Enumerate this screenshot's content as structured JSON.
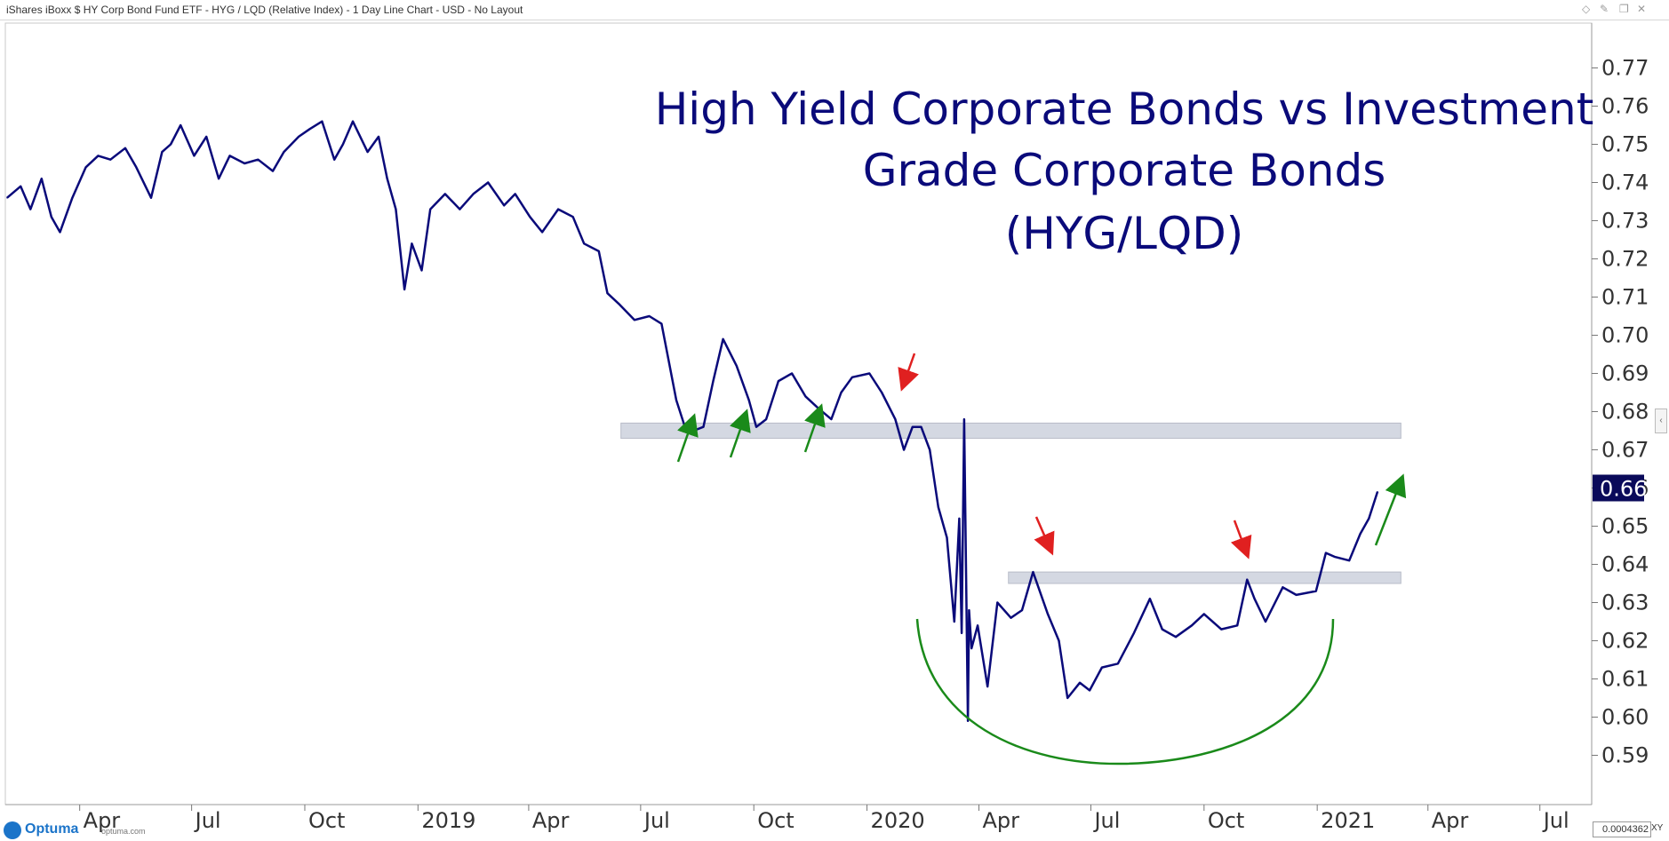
{
  "header": {
    "title": "iShares iBoxx $ HY Corp Bond Fund ETF - HYG / LQD (Relative Index) - 1 Day Line Chart - USD - No Layout",
    "icons": [
      "diamond-icon",
      "pin-icon",
      "restore-icon",
      "close-icon"
    ]
  },
  "footer": {
    "brand": "Optuma",
    "brand_url": "optuma.com",
    "readout_value": "0.0004362",
    "readout_mode": "XY"
  },
  "colors": {
    "line": "#0a0a7a",
    "up_arrow": "#1a8a1a",
    "down_arrow": "#e02020",
    "zone": "#d4d8e2",
    "arc": "#1a8a1a",
    "price_tag_bg": "#0a0a5a"
  },
  "chart_data": {
    "type": "line",
    "title_lines": [
      "High Yield Corporate Bonds vs Investment",
      "Grade Corporate Bonds",
      "(HYG/LQD)"
    ],
    "xlabel": "",
    "ylabel": "",
    "ylim": [
      0.585,
      0.775
    ],
    "y_ticks": [
      "0.77",
      "0.76",
      "0.75",
      "0.74",
      "0.73",
      "0.72",
      "0.71",
      "0.70",
      "0.69",
      "0.68",
      "0.67",
      "0.66",
      "0.65",
      "0.64",
      "0.63",
      "0.62",
      "0.61",
      "0.60",
      "0.59"
    ],
    "x_ticks": [
      "Apr",
      "Jul",
      "Oct",
      "2019",
      "Apr",
      "Jul",
      "Oct",
      "2020",
      "Apr",
      "Jul",
      "Oct",
      "2021",
      "Apr",
      "Jul"
    ],
    "last_value": "0.66",
    "grid": false,
    "legend": "none",
    "series": [
      {
        "x": [
          "2018-02-01",
          "2018-02-12",
          "2018-02-20",
          "2018-03-01",
          "2018-03-09",
          "2018-03-16",
          "2018-03-26",
          "2018-04-06",
          "2018-04-16",
          "2018-04-26",
          "2018-05-08",
          "2018-05-17",
          "2018-05-29",
          "2018-06-07",
          "2018-06-14",
          "2018-06-22",
          "2018-07-03",
          "2018-07-13",
          "2018-07-23",
          "2018-08-01",
          "2018-08-13",
          "2018-08-24",
          "2018-09-05",
          "2018-09-14",
          "2018-09-26",
          "2018-10-05",
          "2018-10-15",
          "2018-10-25",
          "2018-11-01",
          "2018-11-09",
          "2018-11-21",
          "2018-11-30",
          "2018-12-07",
          "2018-12-14",
          "2018-12-21",
          "2018-12-27",
          "2019-01-04",
          "2019-01-11",
          "2019-01-23",
          "2019-02-04",
          "2019-02-15",
          "2019-02-27",
          "2019-03-12",
          "2019-03-21",
          "2019-04-02",
          "2019-04-12",
          "2019-04-25",
          "2019-05-07",
          "2019-05-16",
          "2019-05-28",
          "2019-06-04",
          "2019-06-14",
          "2019-06-26",
          "2019-07-08",
          "2019-07-18",
          "2019-07-30",
          "2019-08-06",
          "2019-08-13",
          "2019-08-21",
          "2019-08-29",
          "2019-09-06",
          "2019-09-17",
          "2019-09-27",
          "2019-10-03",
          "2019-10-11",
          "2019-10-21",
          "2019-11-01",
          "2019-11-12",
          "2019-11-22",
          "2019-12-03",
          "2019-12-11",
          "2019-12-20",
          "2020-01-03",
          "2020-01-13",
          "2020-01-24",
          "2020-01-31",
          "2020-02-07",
          "2020-02-14",
          "2020-02-21",
          "2020-02-28",
          "2020-03-06",
          "2020-03-12",
          "2020-03-16",
          "2020-03-18",
          "2020-03-20",
          "2020-03-23",
          "2020-03-24",
          "2020-03-26",
          "2020-03-31",
          "2020-04-08",
          "2020-04-16",
          "2020-04-27",
          "2020-05-06",
          "2020-05-15",
          "2020-05-27",
          "2020-06-05",
          "2020-06-12",
          "2020-06-22",
          "2020-06-30",
          "2020-07-10",
          "2020-07-23",
          "2020-08-05",
          "2020-08-18",
          "2020-08-28",
          "2020-09-08",
          "2020-09-21",
          "2020-10-01",
          "2020-10-15",
          "2020-10-28",
          "2020-11-05",
          "2020-11-11",
          "2020-11-20",
          "2020-12-04",
          "2020-12-15",
          "2020-12-31",
          "2021-01-08",
          "2021-01-15",
          "2021-01-27",
          "2021-02-05",
          "2021-02-12",
          "2021-02-19"
        ],
        "values": [
          0.736,
          0.739,
          0.733,
          0.741,
          0.731,
          0.727,
          0.736,
          0.744,
          0.747,
          0.746,
          0.749,
          0.744,
          0.736,
          0.748,
          0.75,
          0.755,
          0.747,
          0.752,
          0.741,
          0.747,
          0.745,
          0.746,
          0.743,
          0.748,
          0.752,
          0.754,
          0.756,
          0.746,
          0.75,
          0.756,
          0.748,
          0.752,
          0.741,
          0.733,
          0.712,
          0.724,
          0.717,
          0.733,
          0.737,
          0.733,
          0.737,
          0.74,
          0.734,
          0.737,
          0.731,
          0.727,
          0.733,
          0.731,
          0.724,
          0.722,
          0.711,
          0.708,
          0.704,
          0.705,
          0.703,
          0.683,
          0.676,
          0.675,
          0.676,
          0.688,
          0.699,
          0.692,
          0.683,
          0.676,
          0.678,
          0.688,
          0.69,
          0.684,
          0.681,
          0.678,
          0.685,
          0.689,
          0.69,
          0.685,
          0.678,
          0.67,
          0.676,
          0.676,
          0.67,
          0.655,
          0.647,
          0.625,
          0.652,
          0.622,
          0.678,
          0.599,
          0.628,
          0.618,
          0.624,
          0.608,
          0.63,
          0.626,
          0.628,
          0.638,
          0.627,
          0.62,
          0.605,
          0.609,
          0.607,
          0.613,
          0.614,
          0.622,
          0.631,
          0.623,
          0.621,
          0.624,
          0.627,
          0.623,
          0.624,
          0.636,
          0.631,
          0.625,
          0.634,
          0.632,
          0.633,
          0.643,
          0.642,
          0.641,
          0.648,
          0.652,
          0.659
        ]
      }
    ],
    "zones": [
      {
        "x_start": "2019-06-15",
        "x_end": "2021-03-10",
        "y_low": 0.673,
        "y_high": 0.677
      },
      {
        "x_start": "2020-04-25",
        "x_end": "2021-03-10",
        "y_low": 0.635,
        "y_high": 0.638
      }
    ]
  }
}
